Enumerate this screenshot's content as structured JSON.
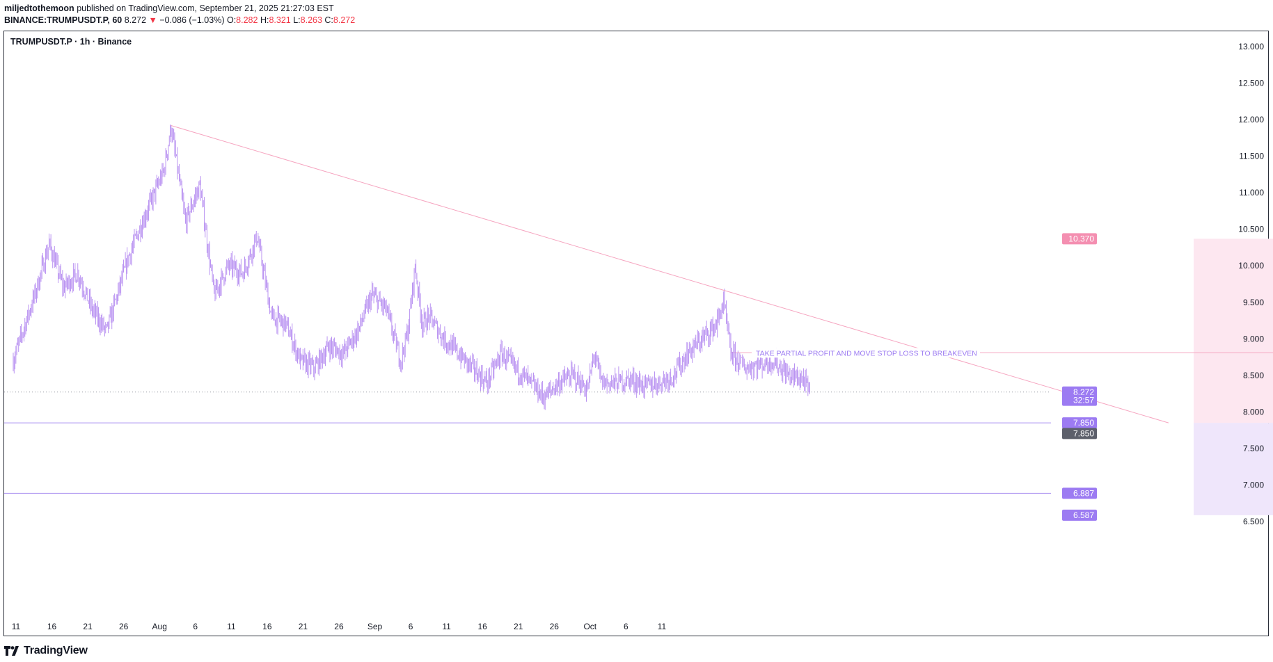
{
  "header": {
    "author": "miljedtothemoon",
    "published_text": "published on TradingView.com, September 21, 2025 21:27:03 EST",
    "symbol_line": "BINANCE:TRUMPUSDT.P, 60",
    "last": "8.272",
    "change": "−0.086 (−1.03%)",
    "o_label": "O:",
    "o_value": "8.282",
    "h_label": "H:",
    "h_value": "8.321",
    "l_label": "L:",
    "l_value": "8.263",
    "c_label": "C:",
    "c_value": "8.272"
  },
  "legend": {
    "title": "TRUMPUSDT.P · 1h · Binance"
  },
  "footer": {
    "brand": "TradingView"
  },
  "colors": {
    "candle": "#b388f0",
    "trendline": "#f6a5c0",
    "target_zone": "#fde7f0",
    "stop_zone": "#efe6fb",
    "level_line": "#a98ff0",
    "badge_pink": "#f48fb1",
    "badge_purple": "#9c7bf2",
    "badge_grey": "#5d606b"
  },
  "chart_data": {
    "type": "candlestick",
    "symbol": "TRUMPUSDT.P",
    "timeframe": "1h",
    "exchange": "Binance",
    "ylim": [
      6.35,
      13.25
    ],
    "y_ticks": [
      "13.000",
      "12.500",
      "12.000",
      "11.500",
      "11.000",
      "10.500",
      "10.000",
      "9.500",
      "9.000",
      "8.500",
      "8.000",
      "7.500",
      "7.000",
      "6.500"
    ],
    "x_ticks": [
      "11",
      "16",
      "21",
      "26",
      "Aug",
      "6",
      "11",
      "16",
      "21",
      "26",
      "Sep",
      "6",
      "11",
      "16",
      "21",
      "26",
      "Oct",
      "6",
      "11"
    ],
    "price_path": [
      [
        0,
        8.7
      ],
      [
        3,
        9.6
      ],
      [
        5,
        10.3
      ],
      [
        7,
        9.7
      ],
      [
        9,
        9.9
      ],
      [
        11,
        9.4
      ],
      [
        13,
        9.1
      ],
      [
        16,
        10.1
      ],
      [
        18,
        10.6
      ],
      [
        21,
        11.3
      ],
      [
        22,
        11.9
      ],
      [
        24,
        10.6
      ],
      [
        26,
        11.1
      ],
      [
        28,
        9.6
      ],
      [
        30,
        10.0
      ],
      [
        32,
        9.9
      ],
      [
        34,
        10.4
      ],
      [
        36,
        9.3
      ],
      [
        38,
        9.2
      ],
      [
        40,
        8.7
      ],
      [
        42,
        8.6
      ],
      [
        44,
        8.9
      ],
      [
        46,
        8.8
      ],
      [
        48,
        9.1
      ],
      [
        50,
        9.6
      ],
      [
        52,
        9.4
      ],
      [
        54,
        8.7
      ],
      [
        55,
        9.1
      ],
      [
        56,
        10.0
      ],
      [
        57,
        9.2
      ],
      [
        58,
        9.3
      ],
      [
        60,
        9.0
      ],
      [
        62,
        8.8
      ],
      [
        64,
        8.6
      ],
      [
        66,
        8.4
      ],
      [
        68,
        8.8
      ],
      [
        70,
        8.6
      ],
      [
        72,
        8.4
      ],
      [
        74,
        8.2
      ],
      [
        76,
        8.4
      ],
      [
        78,
        8.5
      ],
      [
        80,
        8.3
      ],
      [
        81,
        8.8
      ],
      [
        82,
        8.4
      ],
      [
        84,
        8.4
      ],
      [
        86,
        8.45
      ],
      [
        88,
        8.35
      ],
      [
        90,
        8.4
      ],
      [
        92,
        8.5
      ],
      [
        94,
        8.8
      ],
      [
        96,
        9.0
      ],
      [
        98,
        9.2
      ],
      [
        99,
        9.5
      ],
      [
        100,
        8.8
      ],
      [
        102,
        8.6
      ],
      [
        104,
        8.65
      ],
      [
        106,
        8.7
      ],
      [
        108,
        8.5
      ],
      [
        110,
        8.45
      ],
      [
        111,
        8.27
      ]
    ],
    "last_price": 8.272,
    "countdown": "32:57",
    "trendline": {
      "from": [
        22,
        11.92
      ],
      "to": [
        161,
        7.85
      ]
    },
    "levels": {
      "target": 10.37,
      "take_partial_profit": 8.81,
      "entry": 7.85,
      "stop": 6.887,
      "stop_zone_bottom": 6.587
    },
    "zones": [
      {
        "name": "target-zone",
        "x_from": 164.5,
        "x_to": 212,
        "y_from": 7.85,
        "y_to": 10.37
      },
      {
        "name": "stop-zone",
        "x_from": 164.5,
        "x_to": 212,
        "y_from": 6.587,
        "y_to": 7.85
      }
    ],
    "annotation": {
      "text": "TAKE PARTIAL PROFIT AND MOVE STOP LOSS TO BREAKEVEN",
      "price": 8.81
    },
    "price_badges": [
      {
        "label": "10.370",
        "value": 10.37,
        "style": "pink"
      },
      {
        "label": "8.272",
        "value": 8.272,
        "style": "purple"
      },
      {
        "label": "32:57",
        "value": 8.16,
        "style": "purple"
      },
      {
        "label": "7.850",
        "value": 7.85,
        "style": "purple"
      },
      {
        "label": "7.850",
        "value": 7.705,
        "style": "grey"
      },
      {
        "label": "6.887",
        "value": 6.887,
        "style": "purple"
      },
      {
        "label": "6.587",
        "value": 6.587,
        "style": "purple"
      }
    ]
  }
}
